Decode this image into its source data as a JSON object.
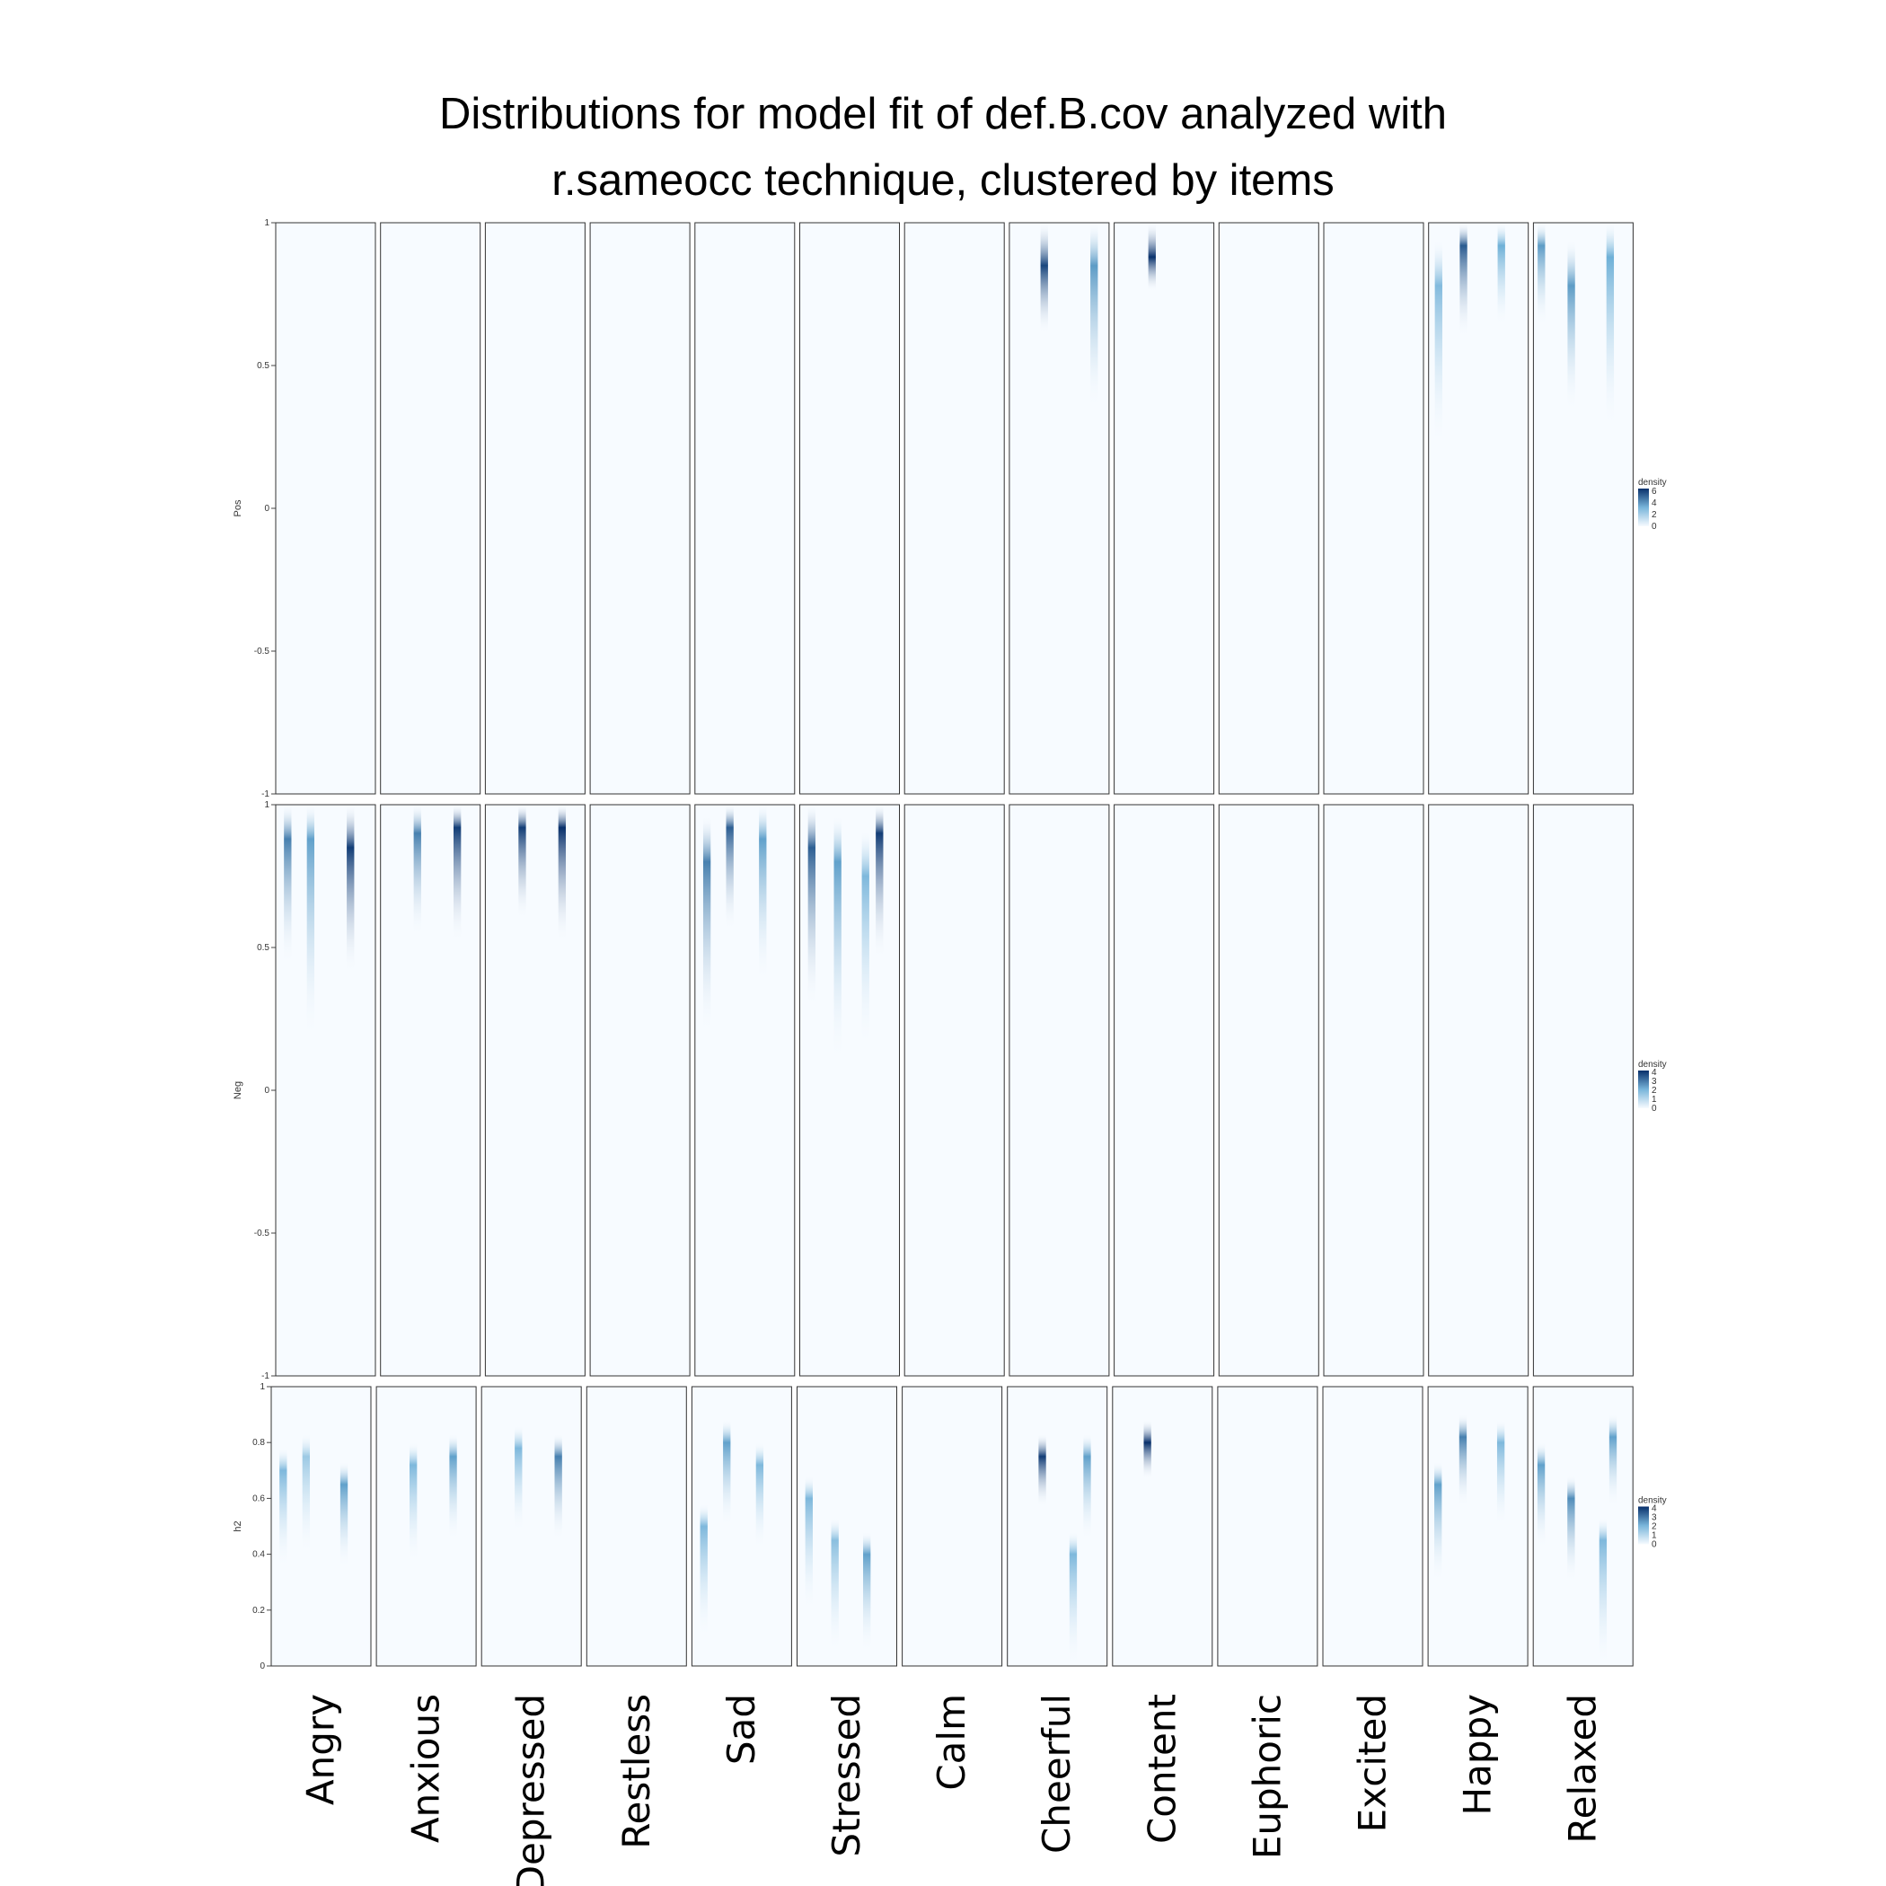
{
  "chart_data": {
    "type": "heatmap",
    "title_lines": [
      "Distributions for model fit of def.B.cov analyzed with",
      "r.sameocc technique, clustered by items"
    ],
    "color_scale": {
      "low": "#f7fbff",
      "mid": "#6baed6",
      "high": "#08306b",
      "legend_title": "density"
    },
    "categories": [
      "Angry",
      "Anxious",
      "Depressed",
      "Restless",
      "Sad",
      "Stressed",
      "Calm",
      "Cheerful",
      "Content",
      "Euphoric",
      "Excited",
      "Happy",
      "Relaxed"
    ],
    "rows": [
      {
        "name": "Pos",
        "ylim": [
          -1,
          1
        ],
        "ticks": [
          "1",
          "0.5",
          "0",
          "-0.5",
          "-1"
        ],
        "tick_values": [
          1,
          0.5,
          0,
          -0.5,
          -1
        ],
        "legend_ticks": [
          0,
          2,
          4,
          6
        ],
        "legend_max": 6.5,
        "bands": {
          "Cheerful": [
            {
              "pos": 0.35,
              "peak": 0.85,
              "width": 0.12,
              "density": 6.0
            },
            {
              "pos": 0.85,
              "peak": 0.85,
              "width": 0.25,
              "density": 4.0
            }
          ],
          "Content": [
            {
              "pos": 0.38,
              "peak": 0.88,
              "width": 0.06,
              "density": 6.5
            }
          ],
          "Happy": [
            {
              "pos": 0.1,
              "peak": 0.78,
              "width": 0.28,
              "density": 3.0
            },
            {
              "pos": 0.35,
              "peak": 0.92,
              "width": 0.16,
              "density": 5.5
            },
            {
              "pos": 0.73,
              "peak": 0.92,
              "width": 0.14,
              "density": 3.5
            }
          ],
          "Relaxed": [
            {
              "pos": 0.08,
              "peak": 0.92,
              "width": 0.14,
              "density": 4.0
            },
            {
              "pos": 0.38,
              "peak": 0.78,
              "width": 0.22,
              "density": 4.0
            },
            {
              "pos": 0.77,
              "peak": 0.88,
              "width": 0.3,
              "density": 3.5
            }
          ]
        }
      },
      {
        "name": "Neg",
        "ylim": [
          -1,
          1
        ],
        "ticks": [
          "1",
          "0.5",
          "0",
          "-0.5",
          "-1"
        ],
        "tick_values": [
          1,
          0.5,
          0,
          -0.5,
          -1
        ],
        "legend_ticks": [
          0,
          1,
          2,
          3,
          4
        ],
        "legend_max": 4.2,
        "bands": {
          "Angry": [
            {
              "pos": 0.12,
              "peak": 0.88,
              "width": 0.22,
              "density": 3.0
            },
            {
              "pos": 0.35,
              "peak": 0.88,
              "width": 0.35,
              "density": 2.5
            },
            {
              "pos": 0.75,
              "peak": 0.85,
              "width": 0.22,
              "density": 4.0
            }
          ],
          "Anxious": [
            {
              "pos": 0.37,
              "peak": 0.9,
              "width": 0.18,
              "density": 3.0
            },
            {
              "pos": 0.77,
              "peak": 0.92,
              "width": 0.2,
              "density": 4.0
            }
          ],
          "Depressed": [
            {
              "pos": 0.37,
              "peak": 0.92,
              "width": 0.16,
              "density": 4.0
            },
            {
              "pos": 0.77,
              "peak": 0.92,
              "width": 0.2,
              "density": 4.2
            }
          ],
          "Sad": [
            {
              "pos": 0.12,
              "peak": 0.8,
              "width": 0.3,
              "density": 3.0
            },
            {
              "pos": 0.35,
              "peak": 0.92,
              "width": 0.18,
              "density": 3.5
            },
            {
              "pos": 0.68,
              "peak": 0.88,
              "width": 0.25,
              "density": 2.5
            }
          ],
          "Stressed": [
            {
              "pos": 0.12,
              "peak": 0.85,
              "width": 0.28,
              "density": 3.5
            },
            {
              "pos": 0.38,
              "peak": 0.8,
              "width": 0.35,
              "density": 2.5
            },
            {
              "pos": 0.66,
              "peak": 0.75,
              "width": 0.3,
              "density": 2.0
            },
            {
              "pos": 0.8,
              "peak": 0.9,
              "width": 0.22,
              "density": 4.0
            }
          ]
        }
      },
      {
        "name": "h2",
        "ylim": [
          0,
          1
        ],
        "ticks": [
          "1",
          "0.8",
          "0.6",
          "0.4",
          "0.2",
          "0"
        ],
        "tick_values": [
          1,
          0.8,
          0.6,
          0.4,
          0.2,
          0
        ],
        "legend_ticks": [
          0,
          1,
          2,
          3,
          4
        ],
        "legend_max": 4.2,
        "bands": {
          "Angry": [
            {
              "pos": 0.12,
              "peak": 0.7,
              "width": 0.35,
              "density": 2.0
            },
            {
              "pos": 0.35,
              "peak": 0.75,
              "width": 0.35,
              "density": 1.5
            },
            {
              "pos": 0.73,
              "peak": 0.65,
              "width": 0.3,
              "density": 2.5
            }
          ],
          "Anxious": [
            {
              "pos": 0.37,
              "peak": 0.72,
              "width": 0.35,
              "density": 2.0
            },
            {
              "pos": 0.77,
              "peak": 0.75,
              "width": 0.3,
              "density": 2.5
            }
          ],
          "Depressed": [
            {
              "pos": 0.37,
              "peak": 0.78,
              "width": 0.3,
              "density": 2.0
            },
            {
              "pos": 0.77,
              "peak": 0.75,
              "width": 0.3,
              "density": 3.0
            }
          ],
          "Sad": [
            {
              "pos": 0.12,
              "peak": 0.5,
              "width": 0.4,
              "density": 2.0
            },
            {
              "pos": 0.35,
              "peak": 0.8,
              "width": 0.3,
              "density": 2.5
            },
            {
              "pos": 0.68,
              "peak": 0.72,
              "width": 0.3,
              "density": 2.0
            }
          ],
          "Stressed": [
            {
              "pos": 0.12,
              "peak": 0.6,
              "width": 0.4,
              "density": 2.0
            },
            {
              "pos": 0.38,
              "peak": 0.45,
              "width": 0.4,
              "density": 1.8
            },
            {
              "pos": 0.7,
              "peak": 0.4,
              "width": 0.35,
              "density": 2.5
            }
          ],
          "Cheerful": [
            {
              "pos": 0.35,
              "peak": 0.75,
              "width": 0.18,
              "density": 4.0
            },
            {
              "pos": 0.66,
              "peak": 0.4,
              "width": 0.4,
              "density": 2.0
            },
            {
              "pos": 0.8,
              "peak": 0.75,
              "width": 0.3,
              "density": 2.5
            }
          ],
          "Content": [
            {
              "pos": 0.35,
              "peak": 0.8,
              "width": 0.13,
              "density": 4.2
            }
          ],
          "Happy": [
            {
              "pos": 0.1,
              "peak": 0.65,
              "width": 0.35,
              "density": 2.5
            },
            {
              "pos": 0.35,
              "peak": 0.82,
              "width": 0.25,
              "density": 3.0
            },
            {
              "pos": 0.73,
              "peak": 0.8,
              "width": 0.3,
              "density": 2.0
            }
          ],
          "Relaxed": [
            {
              "pos": 0.08,
              "peak": 0.72,
              "width": 0.3,
              "density": 2.5
            },
            {
              "pos": 0.38,
              "peak": 0.6,
              "width": 0.3,
              "density": 2.8
            },
            {
              "pos": 0.7,
              "peak": 0.45,
              "width": 0.45,
              "density": 2.0
            },
            {
              "pos": 0.8,
              "peak": 0.82,
              "width": 0.25,
              "density": 2.5
            }
          ]
        }
      }
    ]
  }
}
